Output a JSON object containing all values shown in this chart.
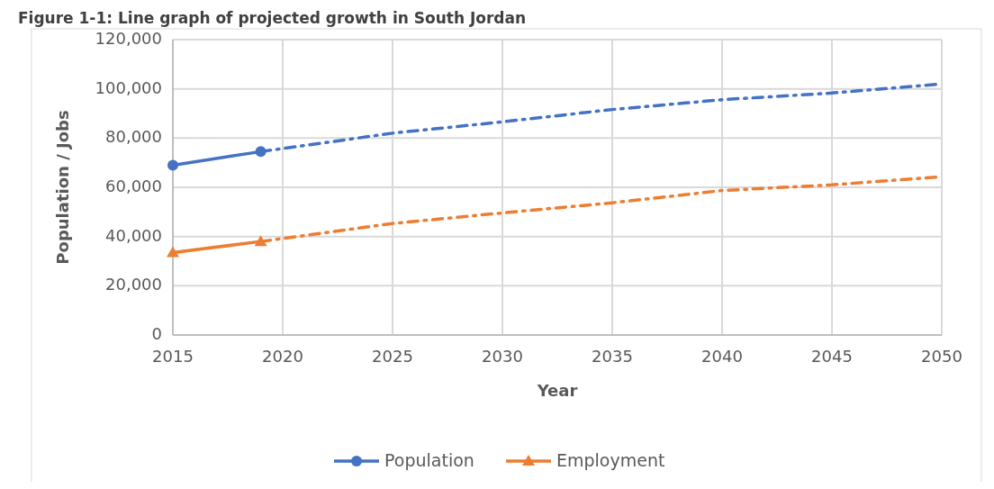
{
  "chart_data": {
    "type": "line",
    "title": "Figure 1-1: Line graph of projected growth in South Jordan",
    "xlabel": "Year",
    "ylabel": "Population / Jobs",
    "xlim": [
      2015,
      2050
    ],
    "xticks": [
      2015,
      2020,
      2025,
      2030,
      2035,
      2040,
      2045,
      2050
    ],
    "ylim": [
      0,
      120000
    ],
    "yticks": [
      {
        "value": 0,
        "label": "0"
      },
      {
        "value": 20000,
        "label": "20,000"
      },
      {
        "value": 40000,
        "label": "40,000"
      },
      {
        "value": 60000,
        "label": "60,000"
      },
      {
        "value": 80000,
        "label": "80,000"
      },
      {
        "value": 100000,
        "label": "100,000"
      },
      {
        "value": 120000,
        "label": "120,000"
      }
    ],
    "grid": true,
    "legend": "bottom",
    "series": [
      {
        "name": "Population",
        "color": "#4472c4",
        "x": [
          2015,
          2019
        ],
        "values": [
          69000,
          74500
        ],
        "marker": "circle",
        "line_style": "solid"
      },
      {
        "name": "Employment",
        "color": "#ed7d31",
        "x": [
          2015,
          2019
        ],
        "values": [
          33500,
          38000
        ],
        "marker": "triangle",
        "line_style": "solid"
      },
      {
        "color": "#4472c4",
        "x": [
          2019,
          2025,
          2030,
          2035,
          2040,
          2045,
          2050
        ],
        "values": [
          74500,
          82000,
          86600,
          91600,
          95600,
          98300,
          102000
        ],
        "marker": "none",
        "line_style": "dashed"
      },
      {
        "color": "#ed7d31",
        "x": [
          2019,
          2025,
          2030,
          2035,
          2040,
          2045,
          2050
        ],
        "values": [
          38000,
          45300,
          49600,
          53700,
          58700,
          61000,
          64300
        ],
        "marker": "none",
        "line_style": "dashed"
      }
    ]
  }
}
